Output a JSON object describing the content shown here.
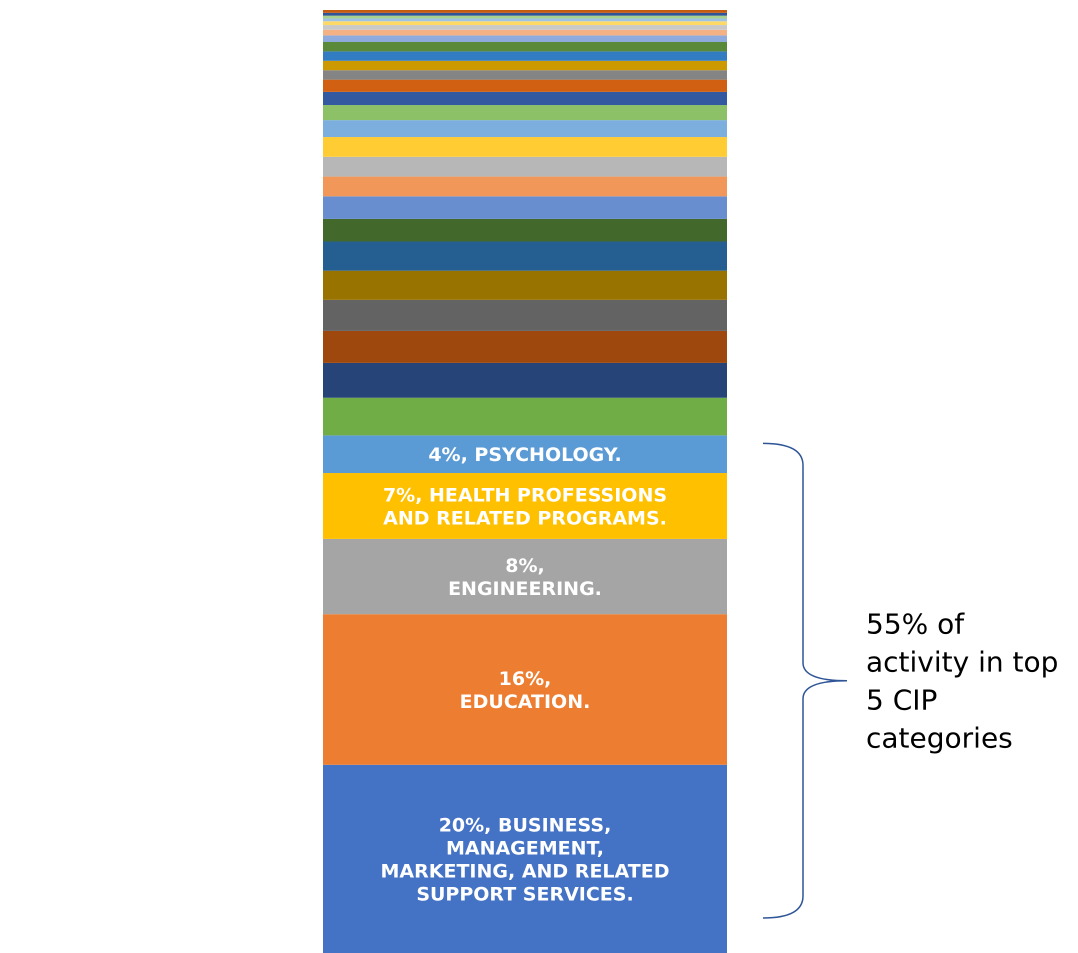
{
  "chart_data": {
    "type": "bar",
    "subtype": "stacked-100",
    "categories": [
      ""
    ],
    "total": 100,
    "series": [
      {
        "name": "BUSINESS, MANAGEMENT, MARKETING, AND RELATED SUPPORT SERVICES.",
        "value": 20,
        "color": "#4472C4",
        "label_lines": [
          "20%, BUSINESS,",
          "MANAGEMENT,",
          "MARKETING, AND RELATED",
          "SUPPORT SERVICES."
        ]
      },
      {
        "name": "EDUCATION.",
        "value": 16,
        "color": "#ED7D31",
        "label_lines": [
          "16%,",
          "EDUCATION."
        ]
      },
      {
        "name": "ENGINEERING.",
        "value": 8,
        "color": "#A5A5A5",
        "label_lines": [
          "8%,",
          "ENGINEERING."
        ]
      },
      {
        "name": "HEALTH PROFESSIONS AND RELATED PROGRAMS.",
        "value": 7,
        "color": "#FFC000",
        "label_lines": [
          "7%, HEALTH PROFESSIONS",
          "AND RELATED PROGRAMS."
        ]
      },
      {
        "name": "PSYCHOLOGY.",
        "value": 4,
        "color": "#5B9BD5",
        "label_lines": [
          "4%, PSYCHOLOGY."
        ]
      },
      {
        "value": 4.0,
        "color": "#70AD47"
      },
      {
        "value": 3.7,
        "color": "#264478"
      },
      {
        "value": 3.4,
        "color": "#9E480E"
      },
      {
        "value": 3.3,
        "color": "#636363"
      },
      {
        "value": 3.1,
        "color": "#997300"
      },
      {
        "value": 3.1,
        "color": "#255E91"
      },
      {
        "value": 2.4,
        "color": "#43682B"
      },
      {
        "value": 2.4,
        "color": "#698ED0"
      },
      {
        "value": 2.1,
        "color": "#F1975A"
      },
      {
        "value": 2.1,
        "color": "#B7B7B7"
      },
      {
        "value": 2.1,
        "color": "#FFCD33"
      },
      {
        "value": 1.8,
        "color": "#7CAFDD"
      },
      {
        "value": 1.6,
        "color": "#8CC168"
      },
      {
        "value": 1.4,
        "color": "#335AA1"
      },
      {
        "value": 1.3,
        "color": "#D26012"
      },
      {
        "value": 1.0,
        "color": "#848484"
      },
      {
        "value": 1.0,
        "color": "#CC9A00"
      },
      {
        "value": 1.0,
        "color": "#327DC2"
      },
      {
        "value": 1.0,
        "color": "#5A8A39"
      },
      {
        "value": 0.7,
        "color": "#8FAADC"
      },
      {
        "value": 0.6,
        "color": "#F4B183"
      },
      {
        "value": 0.5,
        "color": "#C9C9C9"
      },
      {
        "value": 0.4,
        "color": "#FFD966"
      },
      {
        "value": 0.3,
        "color": "#9DC3E6"
      },
      {
        "value": 0.3,
        "color": "#A9D18E"
      },
      {
        "value": 0.3,
        "color": "#2F5597"
      },
      {
        "value": 0.3,
        "color": "#C55A11"
      }
    ],
    "annotation": {
      "text_lines": [
        "55% of",
        "activity in top",
        "5 CIP",
        "categories"
      ],
      "covers_segments": 5,
      "bracket_color": "#2F5597"
    }
  }
}
